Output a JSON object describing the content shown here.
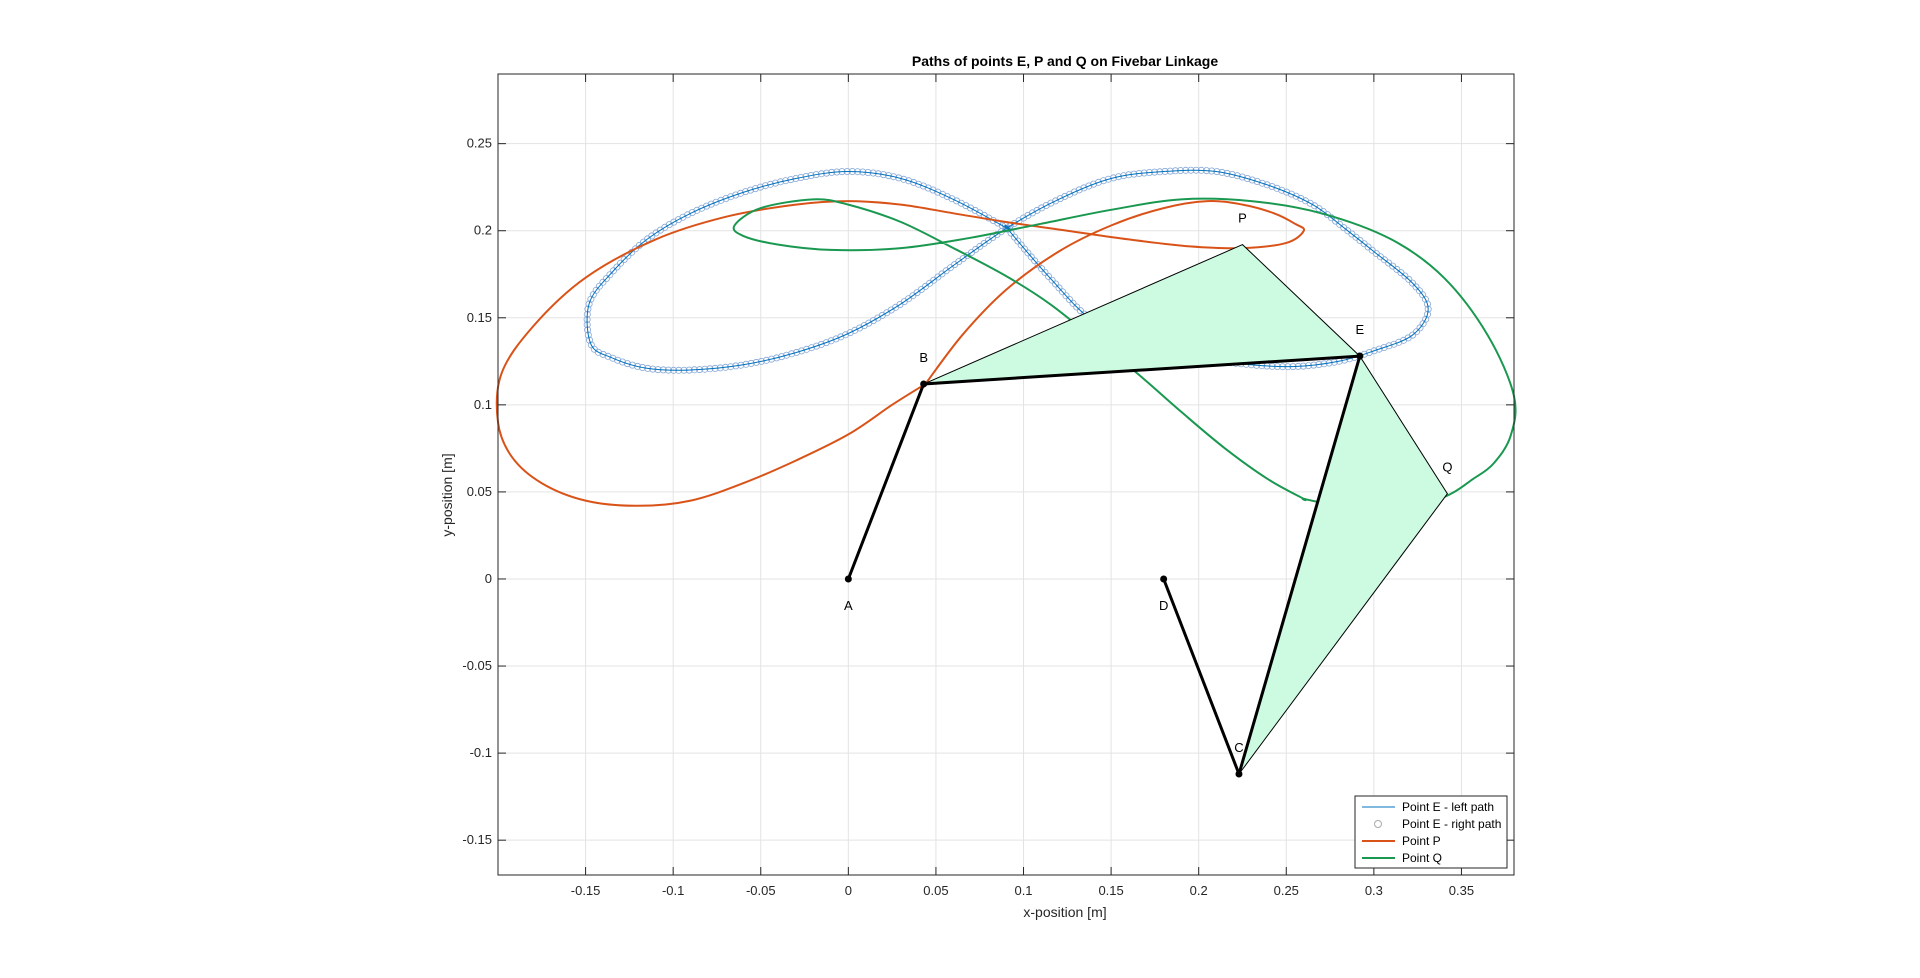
{
  "chart_data": {
    "type": "line",
    "title": "Paths of points E, P and Q on Fivebar Linkage",
    "xlabel": "x-position [m]",
    "ylabel": "y-position [m]",
    "xlim": [
      -0.2,
      0.38
    ],
    "ylim": [
      -0.17,
      0.29
    ],
    "grid": true,
    "legend_position": "bottom-right",
    "x_ticks": [
      -0.15,
      -0.1,
      -0.05,
      0,
      0.05,
      0.1,
      0.15,
      0.2,
      0.25,
      0.3,
      0.35
    ],
    "x_tick_labels": [
      "-0.15",
      "-0.1",
      "-0.05",
      "0",
      "0.05",
      "0.1",
      "0.15",
      "0.2",
      "0.25",
      "0.3",
      "0.35"
    ],
    "y_ticks": [
      -0.15,
      -0.1,
      -0.05,
      0,
      0.05,
      0.1,
      0.15,
      0.2,
      0.25
    ],
    "y_tick_labels": [
      "-0.15",
      "-0.1",
      "-0.05",
      "0",
      "0.05",
      "0.1",
      "0.15",
      "0.2",
      "0.25"
    ],
    "series": [
      {
        "name": "Point E - left path",
        "color": "#0072BD",
        "style": "line",
        "x": [
          0.0905,
          0.06,
          0.03,
          0.0,
          -0.03,
          -0.06,
          -0.09,
          -0.115,
          -0.135,
          -0.148,
          -0.147,
          -0.135,
          -0.115,
          -0.09,
          -0.06,
          -0.03,
          0.0,
          0.03,
          0.06,
          0.0905,
          0.12,
          0.15,
          0.18,
          0.21,
          0.24,
          0.265,
          0.285,
          0.3,
          0.322,
          0.331,
          0.322,
          0.3,
          0.28,
          0.255,
          0.23,
          0.2,
          0.17,
          0.14,
          0.115,
          0.0905
        ],
        "y": [
          0.2015,
          0.218,
          0.23,
          0.234,
          0.23,
          0.222,
          0.21,
          0.195,
          0.176,
          0.158,
          0.135,
          0.127,
          0.121,
          0.12,
          0.123,
          0.13,
          0.141,
          0.158,
          0.18,
          0.2015,
          0.218,
          0.23,
          0.234,
          0.234,
          0.226,
          0.215,
          0.2,
          0.188,
          0.17,
          0.155,
          0.14,
          0.131,
          0.125,
          0.122,
          0.123,
          0.127,
          0.135,
          0.148,
          0.173,
          0.2015
        ]
      },
      {
        "name": "Point E - right path",
        "color": "#87a8d6",
        "style": "markers",
        "x": [
          0.0905,
          0.06,
          0.03,
          0.0,
          -0.03,
          -0.06,
          -0.09,
          -0.115,
          -0.135,
          -0.148,
          -0.147,
          -0.135,
          -0.115,
          -0.09,
          -0.06,
          -0.03,
          0.0,
          0.03,
          0.06,
          0.0905,
          0.12,
          0.15,
          0.18,
          0.21,
          0.24,
          0.265,
          0.285,
          0.3,
          0.322,
          0.331,
          0.322,
          0.3,
          0.28,
          0.255,
          0.23,
          0.2,
          0.17,
          0.14,
          0.115,
          0.0905
        ],
        "y": [
          0.2015,
          0.218,
          0.23,
          0.234,
          0.23,
          0.222,
          0.21,
          0.195,
          0.176,
          0.158,
          0.135,
          0.127,
          0.121,
          0.12,
          0.123,
          0.13,
          0.141,
          0.158,
          0.18,
          0.2015,
          0.218,
          0.23,
          0.234,
          0.234,
          0.226,
          0.215,
          0.2,
          0.188,
          0.17,
          0.155,
          0.14,
          0.131,
          0.125,
          0.122,
          0.123,
          0.127,
          0.135,
          0.148,
          0.173,
          0.2015
        ]
      },
      {
        "name": "Point P",
        "color": "#D95319",
        "style": "line",
        "x": [
          0.044,
          0.065,
          0.09,
          0.12,
          0.15,
          0.18,
          0.205,
          0.225,
          0.243,
          0.255,
          0.26,
          0.25,
          0.225,
          0.195,
          0.16,
          0.125,
          0.09,
          0.06,
          0.03,
          0.0,
          -0.03,
          -0.07,
          -0.11,
          -0.15,
          -0.18,
          -0.198,
          -0.2,
          -0.192,
          -0.175,
          -0.15,
          -0.12,
          -0.09,
          -0.06,
          -0.03,
          0.0,
          0.025,
          0.044
        ],
        "y": [
          0.112,
          0.14,
          0.166,
          0.188,
          0.203,
          0.213,
          0.217,
          0.215,
          0.21,
          0.204,
          0.2,
          0.193,
          0.19,
          0.191,
          0.195,
          0.2,
          0.205,
          0.21,
          0.215,
          0.217,
          0.215,
          0.208,
          0.195,
          0.173,
          0.145,
          0.118,
          0.09,
          0.07,
          0.055,
          0.045,
          0.042,
          0.045,
          0.055,
          0.068,
          0.083,
          0.1,
          0.112
        ]
      },
      {
        "name": "Point Q",
        "color": "#1a9850",
        "style": "line",
        "x": [
          0.26,
          0.24,
          0.215,
          0.19,
          0.165,
          0.14,
          0.115,
          0.09,
          0.06,
          0.03,
          0.0,
          -0.02,
          -0.05,
          -0.065,
          -0.06,
          -0.04,
          -0.01,
          0.03,
          0.07,
          0.11,
          0.15,
          0.19,
          0.23,
          0.27,
          0.31,
          0.34,
          0.365,
          0.38,
          0.378,
          0.368,
          0.356,
          0.346,
          0.335,
          0.32,
          0.295,
          0.275,
          0.26
        ],
        "y": [
          0.046,
          0.057,
          0.075,
          0.096,
          0.118,
          0.138,
          0.158,
          0.174,
          0.19,
          0.205,
          0.215,
          0.218,
          0.213,
          0.203,
          0.197,
          0.192,
          0.189,
          0.19,
          0.196,
          0.204,
          0.212,
          0.218,
          0.217,
          0.21,
          0.195,
          0.173,
          0.14,
          0.105,
          0.082,
          0.066,
          0.057,
          0.05,
          0.045,
          0.041,
          0.041,
          0.043,
          0.046
        ]
      }
    ],
    "linkage": {
      "points": [
        {
          "label": "A",
          "x": 0.0,
          "y": 0.0
        },
        {
          "label": "B",
          "x": 0.043,
          "y": 0.112
        },
        {
          "label": "C",
          "x": 0.223,
          "y": -0.112
        },
        {
          "label": "D",
          "x": 0.18,
          "y": 0.0
        },
        {
          "label": "E",
          "x": 0.292,
          "y": 0.128
        },
        {
          "label": "P",
          "x": 0.225,
          "y": 0.192
        },
        {
          "label": "Q",
          "x": 0.342,
          "y": 0.049
        }
      ],
      "triangles": [
        [
          "B",
          "P",
          "E"
        ],
        [
          "E",
          "Q",
          "C"
        ]
      ],
      "links": [
        [
          "A",
          "B"
        ],
        [
          "B",
          "E"
        ],
        [
          "E",
          "C"
        ],
        [
          "C",
          "D"
        ]
      ],
      "triangle_fill": "#ccfbe2",
      "link_color": "#000000"
    }
  }
}
